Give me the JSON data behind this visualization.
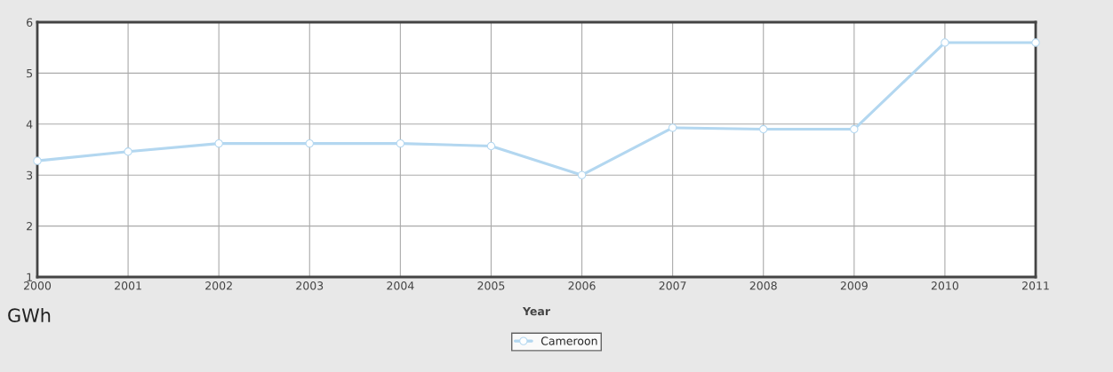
{
  "chart_data": {
    "type": "line",
    "xlabel": "Year",
    "ylabel": "GWh",
    "x": [
      2000,
      2001,
      2002,
      2003,
      2004,
      2005,
      2006,
      2007,
      2008,
      2009,
      2010,
      2011
    ],
    "series": [
      {
        "name": "Cameroon",
        "color": "#b3d7f0",
        "values": [
          3.28,
          3.46,
          3.62,
          3.62,
          3.62,
          3.57,
          3.0,
          3.93,
          3.9,
          3.9,
          5.6,
          5.6
        ]
      }
    ],
    "xlim": [
      2000,
      2011
    ],
    "xticks": [
      2000,
      2001,
      2002,
      2003,
      2004,
      2005,
      2006,
      2007,
      2008,
      2009,
      2010,
      2011
    ],
    "ylim": [
      1,
      6
    ],
    "yticks": [
      1,
      2,
      3,
      4,
      5,
      6
    ],
    "grid": true,
    "legend": "bottom",
    "marker": "circle",
    "line_style": "solid"
  }
}
